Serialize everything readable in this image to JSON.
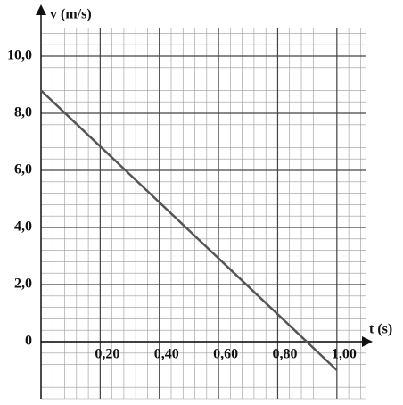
{
  "chart_data": {
    "type": "line",
    "x_label": "t (s)",
    "y_label": "v (m/s)",
    "x": [
      0,
      1.0
    ],
    "values": [
      8.8,
      -1.0
    ],
    "color": "#555555",
    "xlim": [
      0,
      1.1
    ],
    "ylim": [
      -2,
      11
    ],
    "xticks": [
      {
        "value": 0.2,
        "label": "0,20"
      },
      {
        "value": 0.4,
        "label": "0,40"
      },
      {
        "value": 0.6,
        "label": "0,60"
      },
      {
        "value": 0.8,
        "label": "0,80"
      },
      {
        "value": 1.0,
        "label": "1,00"
      }
    ],
    "yticks": [
      0,
      {
        "value": 2,
        "label": "2,0"
      },
      {
        "value": 4,
        "label": "4,0"
      },
      {
        "value": 6,
        "label": "6,0"
      },
      {
        "value": 8,
        "label": "8,0"
      },
      {
        "value": 10,
        "label": "10,0"
      }
    ],
    "grid": true
  }
}
